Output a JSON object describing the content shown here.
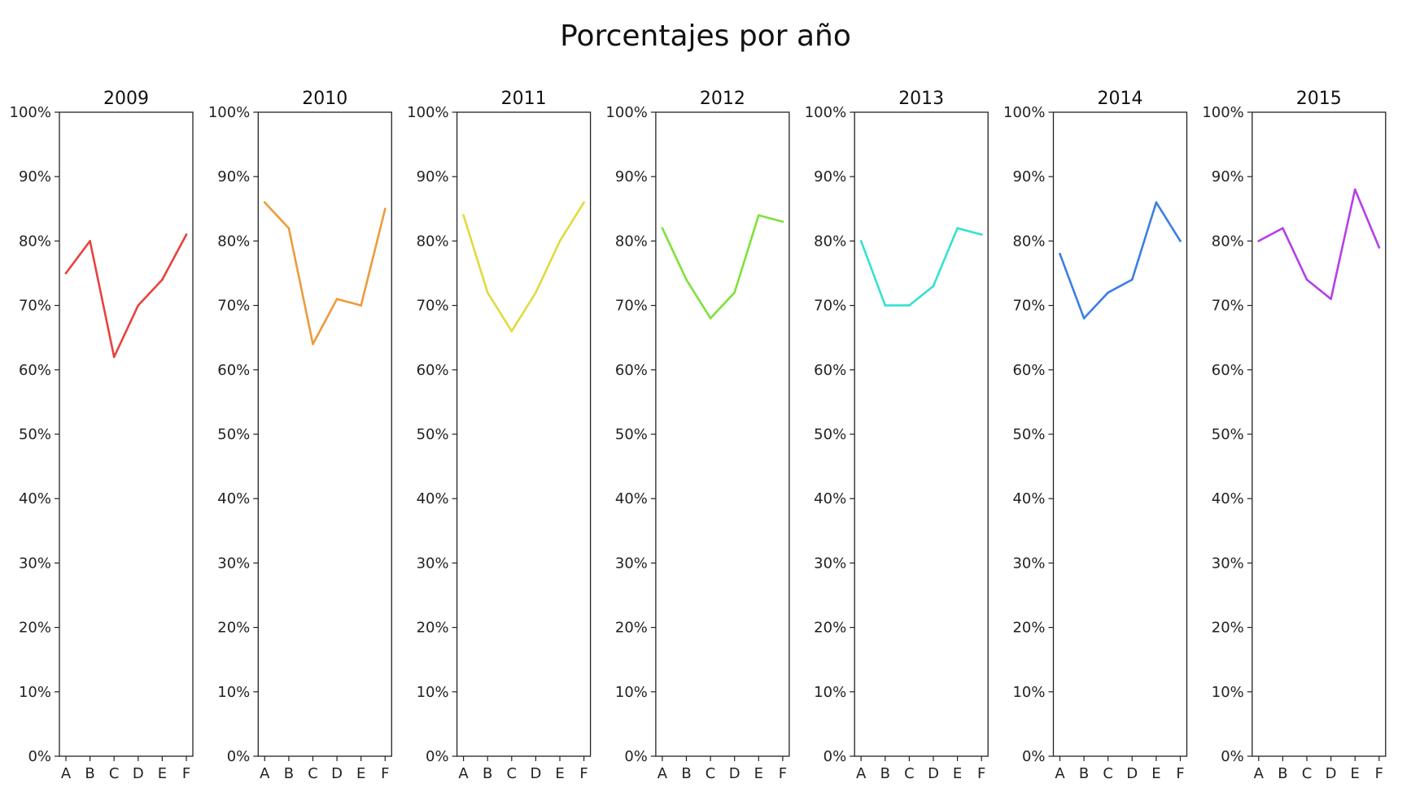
{
  "chart_data": {
    "type": "line",
    "title": "Porcentajes por año",
    "categories": [
      "A",
      "B",
      "C",
      "D",
      "E",
      "F"
    ],
    "ylim": [
      0,
      100
    ],
    "yticks": [
      "0%",
      "10%",
      "20%",
      "30%",
      "40%",
      "50%",
      "60%",
      "70%",
      "80%",
      "90%",
      "100%"
    ],
    "grid": false,
    "panels": [
      {
        "title": "2009",
        "color": "#e8413e",
        "values": [
          75,
          80,
          62,
          70,
          74,
          81
        ]
      },
      {
        "title": "2010",
        "color": "#ee9a3c",
        "values": [
          86,
          82,
          64,
          71,
          70,
          85
        ]
      },
      {
        "title": "2011",
        "color": "#e2da3c",
        "values": [
          84,
          72,
          66,
          72,
          80,
          86
        ]
      },
      {
        "title": "2012",
        "color": "#7de23a",
        "values": [
          82,
          74,
          68,
          72,
          84,
          83
        ]
      },
      {
        "title": "2013",
        "color": "#33e2cf",
        "values": [
          80,
          70,
          70,
          73,
          82,
          81
        ]
      },
      {
        "title": "2014",
        "color": "#3b7ee6",
        "values": [
          78,
          68,
          72,
          74,
          86,
          80
        ]
      },
      {
        "title": "2015",
        "color": "#b43fe8",
        "values": [
          80,
          82,
          74,
          71,
          88,
          79
        ]
      }
    ]
  }
}
